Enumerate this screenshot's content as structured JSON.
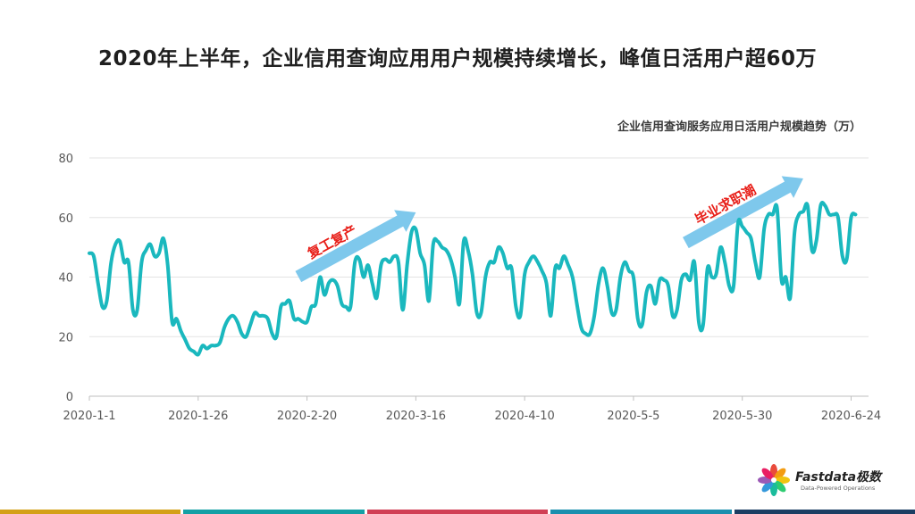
{
  "title": "2020年上半年，企业信用查询应用用户规模持续增长，峰值日活用户超60万",
  "subtitle": "企业信用查询服务应用日活用户规模趋势（万）",
  "logo": {
    "name": "Fastdata极数",
    "tagline": "Data-Powered Operations"
  },
  "colors": {
    "line": "#1ab8be",
    "arrow": "#7ec8ec",
    "annotation": "#e8201a",
    "footer": [
      "#d4a017",
      "#14a0a5",
      "#d13f55",
      "#1a8fae",
      "#1b3e63"
    ]
  },
  "annotations": [
    {
      "text": "复工复产",
      "from": "2020-2-18",
      "to": "2020-3-16"
    },
    {
      "text": "毕业求职潮",
      "from": "2020-5-17",
      "to": "2020-6-13"
    }
  ],
  "chart_data": {
    "type": "line",
    "title": "企业信用查询服务应用日活用户规模趋势（万）",
    "xlabel": "",
    "ylabel": "",
    "ylim": [
      0,
      80
    ],
    "yticks": [
      0,
      20,
      40,
      60,
      80
    ],
    "x_start": "2020-1-1",
    "x_end": "2020-6-28",
    "xticks": [
      "2020-1-1",
      "2020-1-26",
      "2020-2-20",
      "2020-3-16",
      "2020-4-10",
      "2020-5-5",
      "2020-5-30",
      "2020-6-24"
    ],
    "grid": true,
    "series": [
      {
        "name": "",
        "values": [
          48,
          47,
          38,
          30,
          32,
          45,
          51,
          52,
          45,
          45,
          29,
          29,
          45,
          49,
          51,
          47,
          48,
          53,
          44,
          25,
          26,
          22,
          19,
          16,
          15,
          14,
          17,
          16,
          17,
          17,
          18,
          23,
          26,
          27,
          25,
          21,
          20,
          24,
          28,
          27,
          27,
          26,
          21,
          20,
          30,
          31,
          32,
          26,
          26,
          25,
          25,
          30,
          31,
          40,
          34,
          38,
          39,
          37,
          31,
          30,
          30,
          45,
          46,
          40,
          44,
          38,
          33,
          44,
          46,
          45,
          47,
          45,
          29,
          44,
          55,
          56,
          48,
          44,
          32,
          51,
          52,
          50,
          49,
          46,
          40,
          31,
          52,
          49,
          41,
          28,
          28,
          40,
          45,
          45,
          50,
          48,
          43,
          43,
          30,
          27,
          41,
          45,
          47,
          45,
          42,
          38,
          27,
          43,
          43,
          47,
          44,
          40,
          31,
          23,
          21,
          21,
          27,
          38,
          43,
          37,
          28,
          29,
          40,
          45,
          42,
          40,
          26,
          24,
          35,
          37,
          31,
          39,
          39,
          37,
          27,
          29,
          39,
          41,
          39,
          45,
          25,
          24,
          43,
          40,
          41,
          50,
          45,
          37,
          37,
          58,
          57,
          55,
          53,
          45,
          40,
          56,
          61,
          61,
          63,
          39,
          40,
          33,
          55,
          61,
          62,
          64,
          49,
          52,
          64,
          64,
          61,
          61,
          60,
          47,
          46,
          60,
          61
        ]
      }
    ]
  }
}
